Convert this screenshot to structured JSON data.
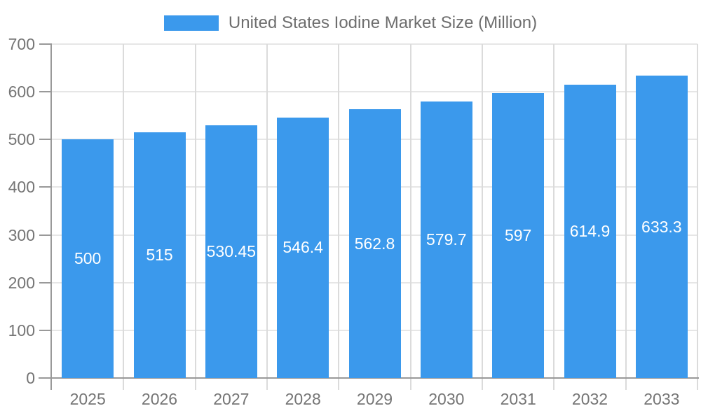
{
  "chart_data": {
    "type": "bar",
    "title": "United States Iodine Market Size (Million)",
    "legend_position": "top",
    "categories": [
      "2025",
      "2026",
      "2027",
      "2028",
      "2029",
      "2030",
      "2031",
      "2032",
      "2033"
    ],
    "values": [
      500,
      515,
      530.45,
      546.4,
      562.8,
      579.7,
      597,
      614.9,
      633.3
    ],
    "value_labels": [
      "500",
      "515",
      "530.45",
      "546.4",
      "562.8",
      "579.7",
      "597",
      "614.9",
      "633.3"
    ],
    "xlabel": "",
    "ylabel": "",
    "ylim": [
      0,
      700
    ],
    "yticks": [
      0,
      100,
      200,
      300,
      400,
      500,
      600,
      700
    ],
    "grid": true,
    "colors": {
      "bar": "#3b99ec",
      "axis_line": "#999999",
      "grid_horizontal": "#e6e6e6",
      "grid_vertical": "#dbdbdb",
      "axis_text": "#757575",
      "title_text": "#6e6e6e",
      "bar_label_text": "#ffffff",
      "background": "#ffffff"
    }
  }
}
